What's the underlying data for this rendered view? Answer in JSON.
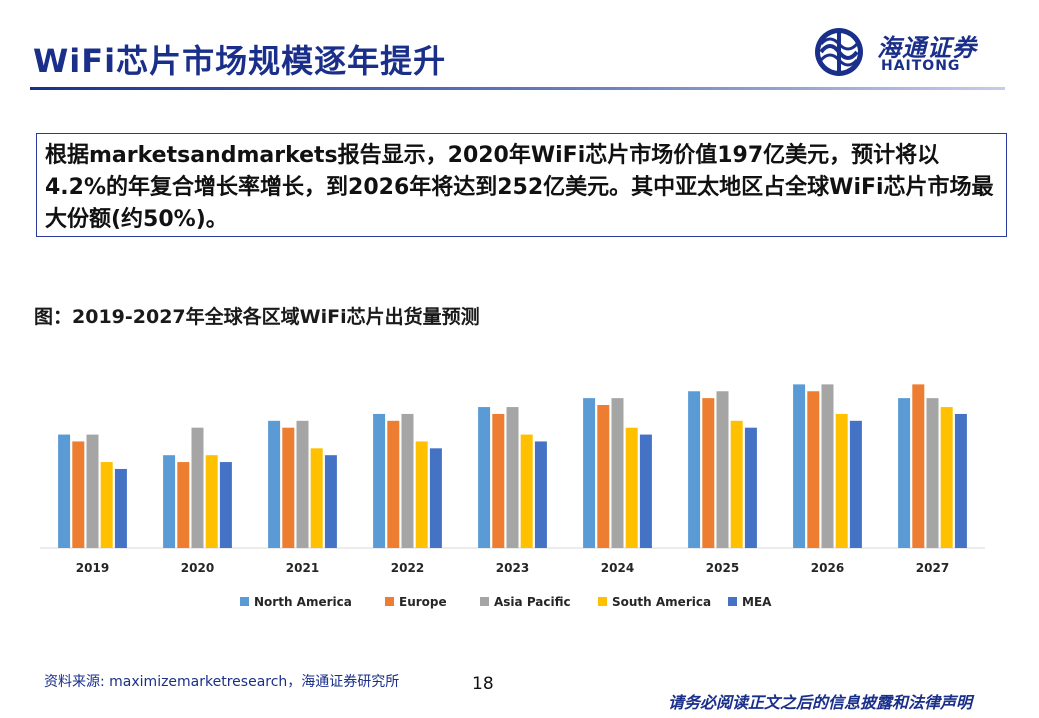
{
  "header": {
    "title": "WiFi芯片市场规模逐年提升",
    "logo_cn": "海通证券",
    "logo_en": "HAITONG",
    "accent_color": "#1a2f8a"
  },
  "summary": {
    "text": "根据marketsandmarkets报告显示，2020年WiFi芯片市场价值197亿美元，预计将以4.2%的年复合增长率增长，到2026年将达到252亿美元。其中亚太地区占全球WiFi芯片市场最大份额(约50%)。"
  },
  "figure": {
    "caption": "图：2019-2027年全球各区域WiFi芯片出货量预测"
  },
  "chart_data": {
    "type": "bar",
    "categories": [
      "2019",
      "2020",
      "2021",
      "2022",
      "2023",
      "2024",
      "2025",
      "2026",
      "2027"
    ],
    "series": [
      {
        "name": "North America",
        "color": "#5b9bd5",
        "values": [
          16.5,
          13.5,
          18.5,
          19.5,
          20.5,
          21.8,
          22.8,
          23.8,
          21.8
        ]
      },
      {
        "name": "Europe",
        "color": "#ed7d31",
        "values": [
          15.5,
          12.5,
          17.5,
          18.5,
          19.5,
          20.8,
          21.8,
          22.8,
          23.8
        ]
      },
      {
        "name": "Asia Pacific",
        "color": "#a5a5a5",
        "values": [
          16.5,
          17.5,
          18.5,
          19.5,
          20.5,
          21.8,
          22.8,
          23.8,
          21.8
        ]
      },
      {
        "name": "South America",
        "color": "#ffc000",
        "values": [
          12.5,
          13.5,
          14.5,
          15.5,
          16.5,
          17.5,
          18.5,
          19.5,
          20.5
        ]
      },
      {
        "name": "MEA",
        "color": "#4472c4",
        "values": [
          11.5,
          12.5,
          13.5,
          14.5,
          15.5,
          16.5,
          17.5,
          18.5,
          19.5
        ]
      }
    ],
    "ylim": [
      0,
      24
    ],
    "grid": false,
    "legend": "bottom"
  },
  "footer": {
    "source": "资料来源: maximizemarketresearch，海通证券研究所",
    "page_number": "18",
    "disclaimer": "请务必阅读正文之后的信息披露和法律声明"
  }
}
